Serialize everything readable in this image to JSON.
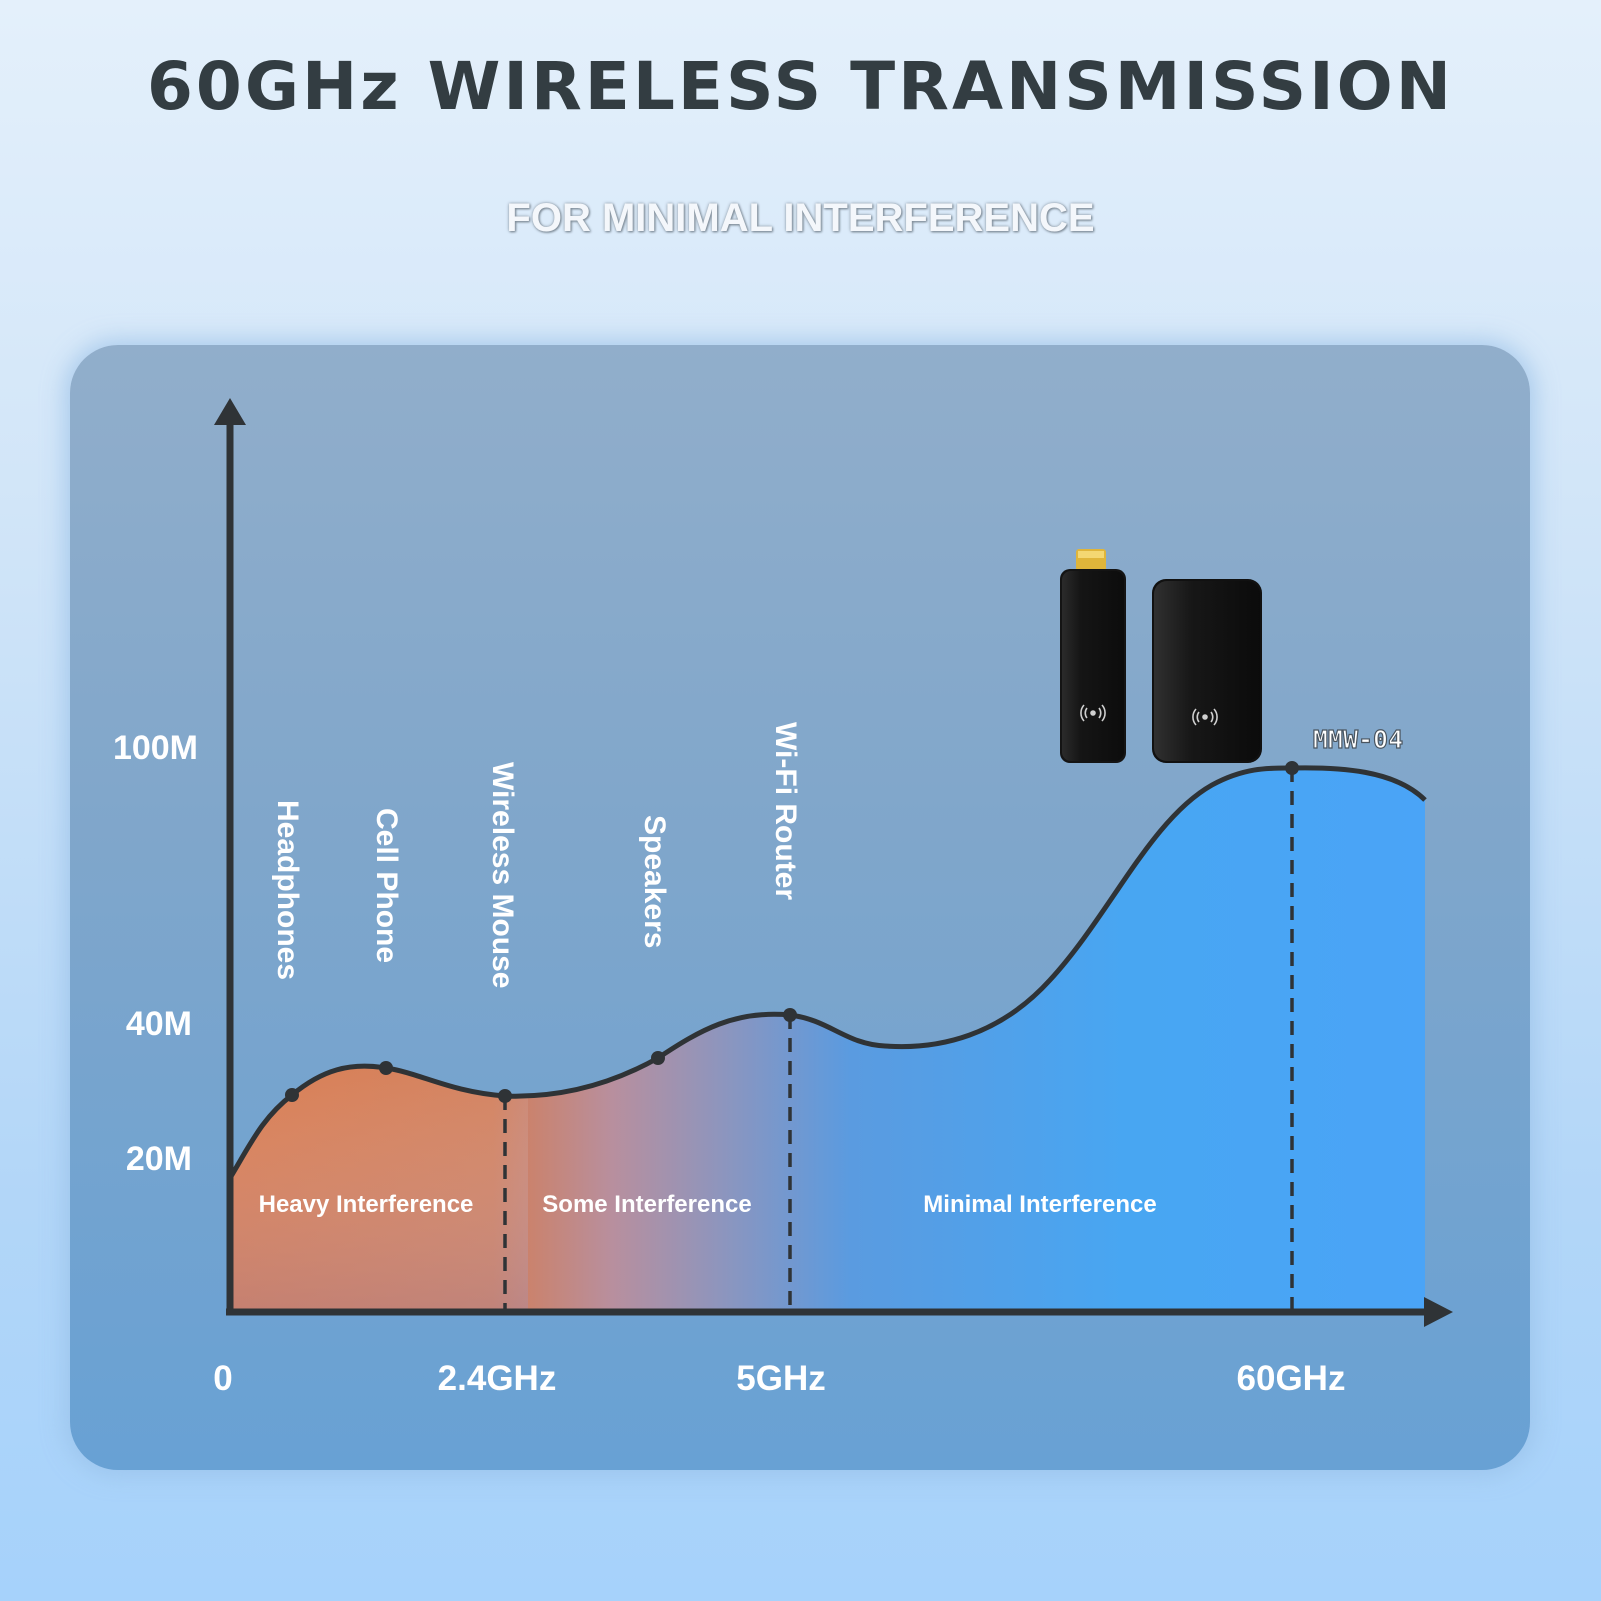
{
  "header": {
    "title": "60GHz WIRELESS TRANSMISSION",
    "subtitle": "FOR MINIMAL INTERFERENCE"
  },
  "product": {
    "model": "MMW-04"
  },
  "colors": {
    "title": "#333d42",
    "heavy": "#d97a4c",
    "minimal": "#4ba6f2",
    "axis": "#2f3336"
  },
  "icons": [
    "wifi-signal-icon",
    "wifi-signal-icon"
  ],
  "chart_data": {
    "type": "area",
    "x_labels": [
      "0",
      "2.4GHz",
      "5GHz",
      "60GHz"
    ],
    "y_labels": [
      "100M",
      "40M",
      "20M"
    ],
    "devices": [
      {
        "name": "Headphones"
      },
      {
        "name": "Cell Phone"
      },
      {
        "name": "Wireless Mouse",
        "frequency": "2.4GHz"
      },
      {
        "name": "Speakers"
      },
      {
        "name": "Wi-Fi Router",
        "frequency": "5GHz"
      },
      {
        "name": "MMW-04",
        "frequency": "60GHz"
      }
    ],
    "zones": [
      {
        "label": "Heavy Interference",
        "color": "#d97a4c"
      },
      {
        "label": "Some Interference",
        "color": "#9a8fb0"
      },
      {
        "label": "Minimal Interference",
        "color": "#4ba6f2"
      }
    ],
    "grid": false,
    "legend": "none"
  }
}
